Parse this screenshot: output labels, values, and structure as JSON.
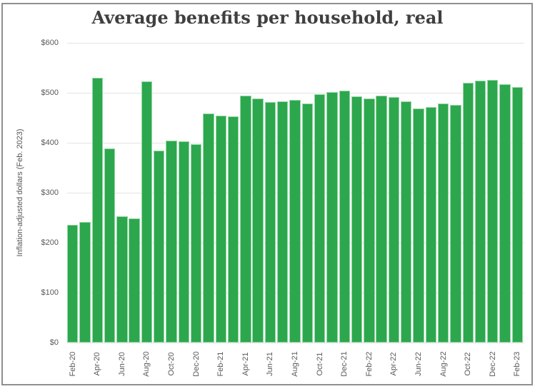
{
  "page": {
    "title": "Average benefits per household, real"
  },
  "chart_data": {
    "type": "bar",
    "title": "Average benefits per household, real",
    "xlabel": "",
    "ylabel": "Inflation-adjusted dollars (Feb. 2023)",
    "ylim": [
      0,
      600
    ],
    "ytick_step": 100,
    "ytick_labels": [
      "$0",
      "$100",
      "$200",
      "$300",
      "$400",
      "$500",
      "$600"
    ],
    "grid": true,
    "legend": "none",
    "x_label_every": 2,
    "bar_color": "#2da74d",
    "bar_edge_color": "#94d7a5",
    "categories": [
      "Feb-20",
      "Mar-20",
      "Apr-20",
      "May-20",
      "Jun-20",
      "Jul-20",
      "Aug-20",
      "Sep-20",
      "Oct-20",
      "Nov-20",
      "Dec-20",
      "Jan-21",
      "Feb-21",
      "Mar-21",
      "Apr-21",
      "May-21",
      "Jun-21",
      "Jul-21",
      "Aug-21",
      "Sep-21",
      "Oct-21",
      "Nov-21",
      "Dec-21",
      "Jan-22",
      "Feb-22",
      "Mar-22",
      "Apr-22",
      "May-22",
      "Jun-22",
      "Jul-22",
      "Aug-22",
      "Sep-22",
      "Oct-22",
      "Nov-22",
      "Dec-22",
      "Jan-23",
      "Feb-23"
    ],
    "values": [
      236,
      241,
      530,
      388,
      253,
      248,
      523,
      384,
      405,
      403,
      397,
      458,
      454,
      453,
      494,
      489,
      482,
      483,
      486,
      479,
      497,
      502,
      504,
      493,
      488,
      495,
      491,
      483,
      469,
      472,
      479,
      476,
      520,
      524,
      526,
      517,
      512
    ]
  }
}
